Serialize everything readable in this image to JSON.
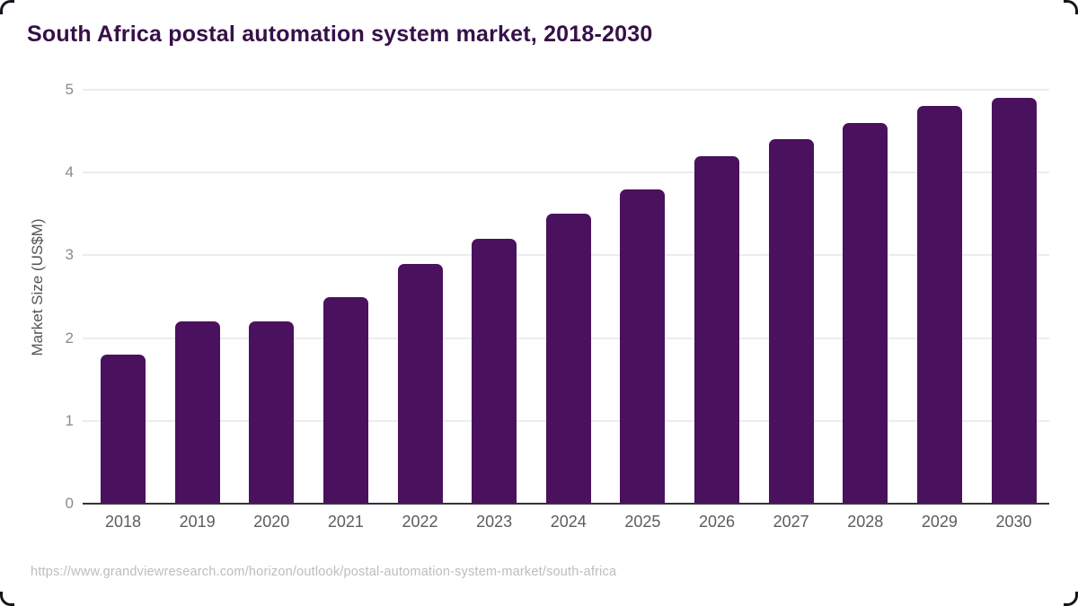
{
  "header": {
    "title": "South Africa postal automation system market, 2018-2030"
  },
  "footer": {
    "source_url": "https://www.grandviewresearch.com/horizon/outlook/postal-automation-system-market/south-africa"
  },
  "chart_data": {
    "type": "bar",
    "title": "South Africa postal automation system market, 2018-2030",
    "categories": [
      "2018",
      "2019",
      "2020",
      "2021",
      "2022",
      "2023",
      "2024",
      "2025",
      "2026",
      "2027",
      "2028",
      "2029",
      "2030"
    ],
    "values": [
      1.8,
      2.2,
      2.2,
      2.5,
      2.9,
      3.2,
      3.5,
      3.8,
      4.2,
      4.4,
      4.6,
      4.8,
      4.9
    ],
    "xlabel": "",
    "ylabel": "Market Size (US$M)",
    "yticks": [
      0,
      1,
      2,
      3,
      4,
      5
    ],
    "ylim": [
      0,
      5
    ],
    "grid": true,
    "legend": "none",
    "bar_color": "#4a115e"
  },
  "colors": {
    "title": "#361049",
    "bar": "#4a115e",
    "gridline": "#ececec",
    "axis_line": "#33333a",
    "y_tick": "#8a8a8a",
    "x_tick": "#5c5c5c",
    "y_label": "#555555",
    "source": "#bdbdbd",
    "frame": "#15151c"
  }
}
